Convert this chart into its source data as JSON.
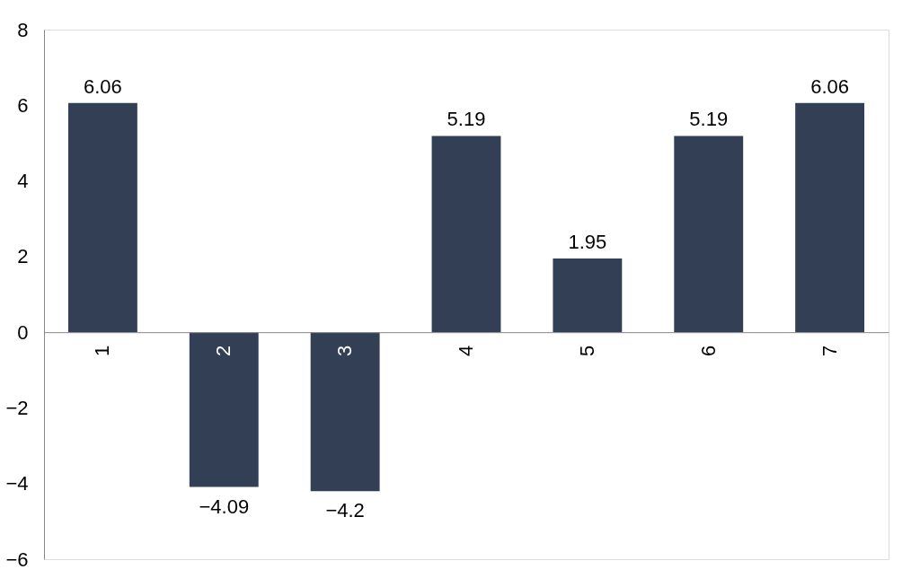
{
  "chart_data": {
    "type": "bar",
    "categories": [
      "1",
      "2",
      "3",
      "4",
      "5",
      "6",
      "7"
    ],
    "values": [
      6.06,
      -4.09,
      -4.2,
      5.19,
      1.95,
      5.19,
      6.06
    ],
    "color": "#323f55",
    "ylim": [
      -6,
      8
    ],
    "yticks": [
      -6,
      -4,
      -2,
      0,
      2,
      4,
      6,
      8
    ],
    "grid": false,
    "data_labels": true
  }
}
